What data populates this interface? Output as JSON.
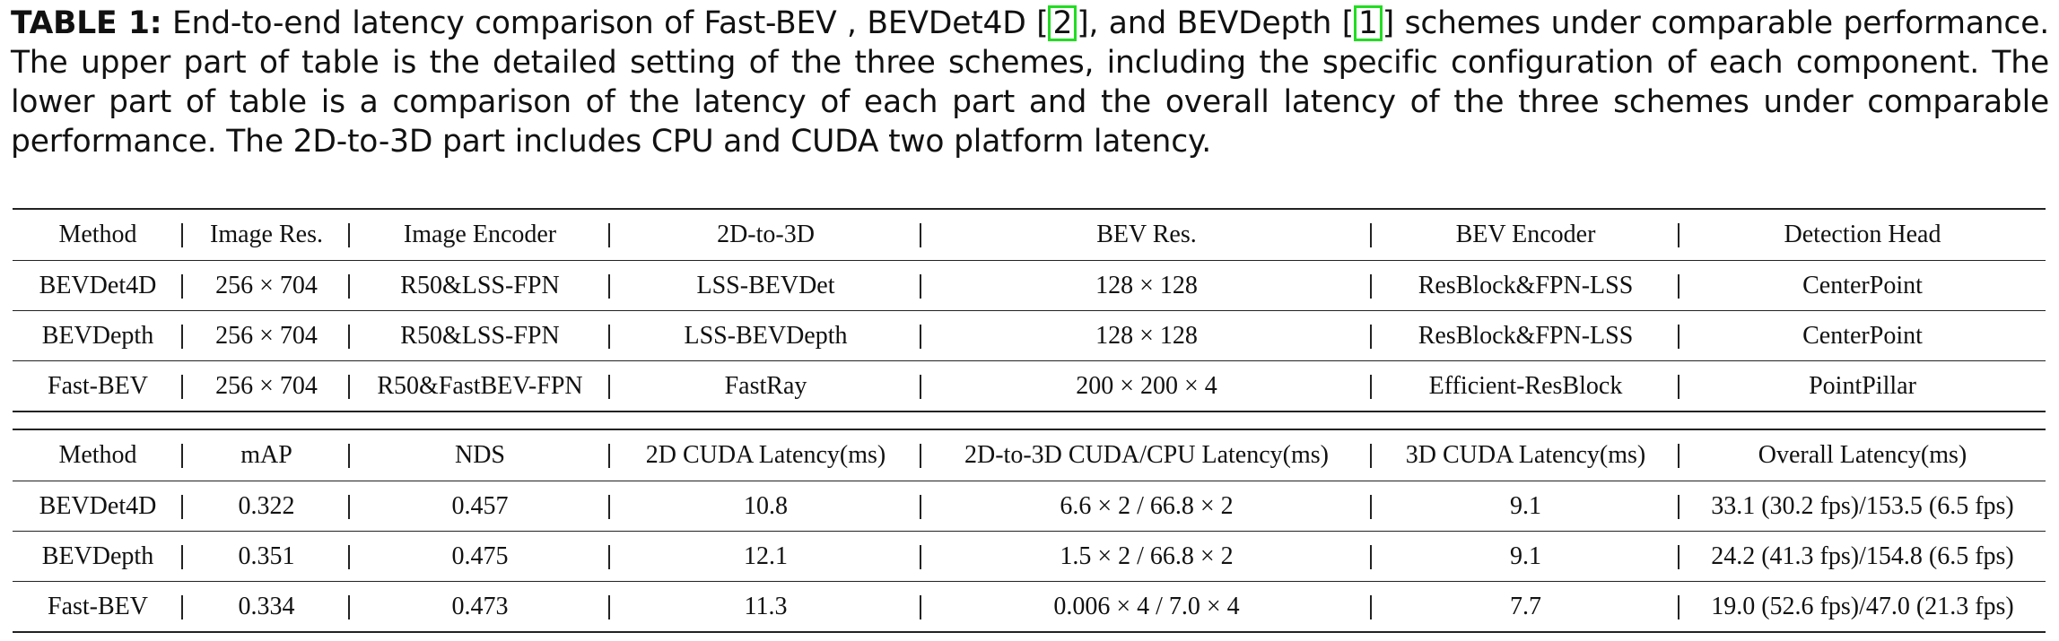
{
  "caption": {
    "label": "TABLE 1:",
    "text_a": " End-to-end latency comparison of Fast-BEV , BEVDet4D [",
    "ref_a": "2",
    "text_b": "], and BEVDepth [",
    "ref_b": "1",
    "text_c": "] schemes under comparable performance. The upper part of table is the detailed setting of the three schemes, including the specific configuration of each component. The lower part of table is a comparison of the latency of each part and the overall latency of the three schemes under comparable performance. The 2D-to-3D part includes CPU and CUDA two platform latency."
  },
  "table_settings": {
    "headers": [
      "Method",
      "Image Res.",
      "Image Encoder",
      "2D-to-3D",
      "BEV Res.",
      "BEV Encoder",
      "Detection Head"
    ],
    "rows": [
      [
        "BEVDet4D",
        "256 × 704",
        "R50&LSS-FPN",
        "LSS-BEVDet",
        "128 × 128",
        "ResBlock&FPN-LSS",
        "CenterPoint"
      ],
      [
        "BEVDepth",
        "256 × 704",
        "R50&LSS-FPN",
        "LSS-BEVDepth",
        "128 × 128",
        "ResBlock&FPN-LSS",
        "CenterPoint"
      ],
      [
        "Fast-BEV",
        "256 × 704",
        "R50&FastBEV-FPN",
        "FastRay",
        "200 × 200 × 4",
        "Efficient-ResBlock",
        "PointPillar"
      ]
    ]
  },
  "table_latency": {
    "headers": [
      "Method",
      "mAP",
      "NDS",
      "2D CUDA Latency(ms)",
      "2D-to-3D CUDA/CPU Latency(ms)",
      "3D CUDA Latency(ms)",
      "Overall Latency(ms)"
    ],
    "rows": [
      [
        "BEVDet4D",
        "0.322",
        "0.457",
        "10.8",
        "6.6 × 2 / 66.8 × 2",
        "9.1",
        "33.1 (30.2 fps)/153.5 (6.5 fps)"
      ],
      [
        "BEVDepth",
        "0.351",
        "0.475",
        "12.1",
        "1.5 × 2 / 66.8 × 2",
        "9.1",
        "24.2 (41.3 fps)/154.8 (6.5 fps)"
      ],
      [
        "Fast-BEV",
        "0.334",
        "0.473",
        "11.3",
        "0.006 × 4 / 7.0 × 4",
        "7.7",
        "19.0 (52.6 fps)/47.0 (21.3 fps)"
      ]
    ]
  }
}
